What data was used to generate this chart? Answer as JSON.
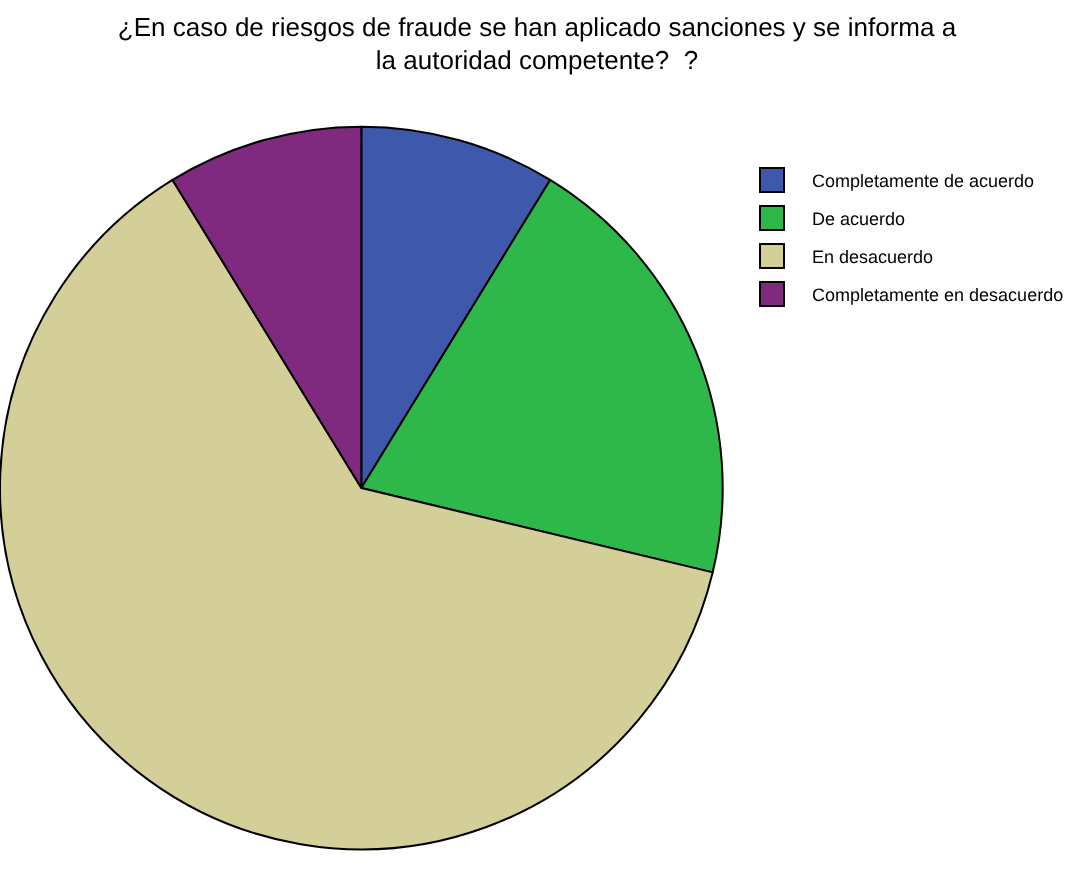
{
  "chart_data": {
    "type": "pie",
    "title": "¿En caso de riesgos de fraude se han aplicado sanciones y se informa a la autoridad competente?  ?",
    "categories": [
      "Completamente de acuerdo",
      "De acuerdo",
      "En desacuerdo",
      "Completamente en desacuerdo"
    ],
    "values": [
      8.75,
      20,
      62.5,
      8.75
    ],
    "colors": [
      "#3e58ac",
      "#2fb84a",
      "#d4cf99",
      "#7f2a7e"
    ],
    "legend": "top right"
  }
}
